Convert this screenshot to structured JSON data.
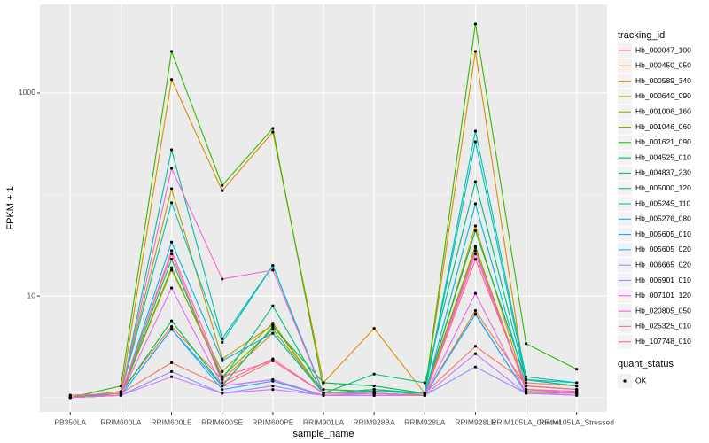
{
  "chart_data": {
    "type": "line",
    "x_label": "sample_name",
    "y_label": "FPKM + 1",
    "log_y": true,
    "grid": true,
    "legend_position": "right",
    "legend_title": "tracking_id",
    "point_legend_title": "quant_status",
    "point_legend_entries": [
      "OK"
    ],
    "point_color": "#000000",
    "ylim": [
      0.72,
      7460
    ],
    "yticks": [
      10,
      1000
    ],
    "y_minor_ticks": [
      1,
      100
    ],
    "categories": [
      "PB350LA",
      "RRIM600LA",
      "RRIM600LE",
      "RRIM600SE",
      "RRIM600PE",
      "RRIM901LA",
      "RRIM928BA",
      "RRIM928LA",
      "RRIM928LE",
      "RRIM105LA_Control",
      "RRIM105LA_Stressed"
    ],
    "series": [
      {
        "name": "Hb_000047_100",
        "color": "#F8766D",
        "values": [
          1.05,
          1.1,
          2.2,
          1.3,
          2.3,
          1.1,
          1.15,
          1.1,
          3.2,
          1.4,
          1.3
        ]
      },
      {
        "name": "Hb_000450_050",
        "color": "#EA8331",
        "values": [
          1.0,
          1.15,
          5.0,
          1.5,
          4.3,
          1.1,
          1.1,
          1.05,
          7.2,
          1.3,
          1.2
        ]
      },
      {
        "name": "Hb_000589_340",
        "color": "#D89000",
        "values": [
          1.0,
          1.1,
          1360,
          109,
          412,
          1.4,
          4.8,
          1.1,
          2570,
          1.3,
          1.2
        ]
      },
      {
        "name": "Hb_000640_090",
        "color": "#C09B00",
        "values": [
          1.0,
          1.1,
          114,
          2.4,
          5.2,
          1.1,
          1.2,
          1.05,
          49,
          1.2,
          1.15
        ]
      },
      {
        "name": "Hb_001006_160",
        "color": "#A3A500",
        "values": [
          1.0,
          1.05,
          18,
          1.8,
          5.4,
          1.1,
          1.1,
          1.05,
          30,
          1.2,
          1.1
        ]
      },
      {
        "name": "Hb_001046_060",
        "color": "#7CAE00",
        "values": [
          1.0,
          1.05,
          19,
          1.6,
          4.7,
          1.1,
          1.2,
          1.1,
          31,
          1.15,
          1.1
        ]
      },
      {
        "name": "Hb_001621_090",
        "color": "#39B600",
        "values": [
          1.0,
          1.3,
          2570,
          123,
          448,
          1.2,
          1.15,
          1.1,
          4800,
          3.4,
          1.9
        ]
      },
      {
        "name": "Hb_004525_010",
        "color": "#00BB4E",
        "values": [
          1.0,
          1.1,
          5.7,
          1.3,
          5.0,
          1.4,
          1.3,
          1.1,
          44,
          1.5,
          1.3
        ]
      },
      {
        "name": "Hb_004837_230",
        "color": "#00BF7D",
        "values": [
          1.0,
          1.05,
          23,
          1.5,
          8.0,
          1.1,
          1.7,
          1.4,
          134,
          1.5,
          1.3
        ]
      },
      {
        "name": "Hb_005000_120",
        "color": "#00C1A3",
        "values": [
          1.0,
          1.05,
          276,
          3.8,
          20,
          1.1,
          1.2,
          1.1,
          421,
          1.6,
          1.4
        ]
      },
      {
        "name": "Hb_005245_110",
        "color": "#00BFC4",
        "values": [
          1.0,
          1.1,
          83,
          3.5,
          20,
          1.1,
          1.15,
          1.1,
          331,
          1.5,
          1.4
        ]
      },
      {
        "name": "Hb_005276_080",
        "color": "#00BAE0",
        "values": [
          1.0,
          1.05,
          34,
          2.3,
          4.3,
          1.1,
          1.1,
          1.05,
          81,
          1.3,
          1.2
        ]
      },
      {
        "name": "Hb_005605_010",
        "color": "#00B0F6",
        "values": [
          1.0,
          1.05,
          4.7,
          1.3,
          1.5,
          1.05,
          1.05,
          1.05,
          6.7,
          1.1,
          1.1
        ]
      },
      {
        "name": "Hb_005605_020",
        "color": "#35A2FF",
        "values": [
          1.0,
          1.05,
          4.7,
          1.2,
          1.45,
          1.05,
          1.05,
          1.05,
          6.6,
          1.1,
          1.1
        ]
      },
      {
        "name": "Hb_006665_020",
        "color": "#9590FF",
        "values": [
          1.0,
          1.05,
          1.8,
          1.1,
          1.3,
          1.05,
          1.05,
          1.05,
          2.0,
          1.1,
          1.05
        ]
      },
      {
        "name": "Hb_006901_010",
        "color": "#C77CFF",
        "values": [
          1.0,
          1.05,
          1.6,
          1.1,
          1.2,
          1.05,
          1.05,
          1.05,
          2.7,
          1.1,
          1.05
        ]
      },
      {
        "name": "Hb_007101_120",
        "color": "#E76BF3",
        "values": [
          1.0,
          1.05,
          12,
          1.3,
          1.5,
          1.05,
          1.1,
          1.05,
          10.6,
          1.1,
          1.1
        ]
      },
      {
        "name": "Hb_020805_050",
        "color": "#FA62DB",
        "values": [
          1.0,
          1.05,
          181,
          14.7,
          18,
          1.1,
          1.1,
          1.05,
          26,
          1.2,
          1.15
        ]
      },
      {
        "name": "Hb_025325_010",
        "color": "#FF62BC",
        "values": [
          1.0,
          1.05,
          28,
          1.6,
          2.3,
          1.1,
          1.1,
          1.05,
          28,
          1.2,
          1.1
        ]
      },
      {
        "name": "Hb_107748_010",
        "color": "#FF6C90",
        "values": [
          1.05,
          1.1,
          26,
          1.4,
          2.4,
          1.1,
          1.1,
          1.05,
          23,
          1.3,
          1.2
        ]
      }
    ]
  }
}
